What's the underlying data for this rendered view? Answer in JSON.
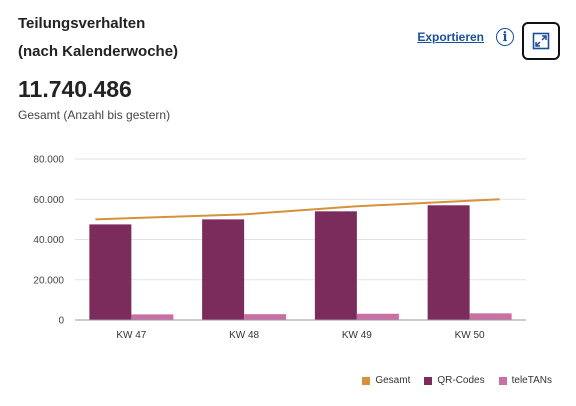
{
  "header": {
    "title_line1": "Teilungsverhalten",
    "title_line2": "(nach Kalenderwoche)",
    "export_label": "Exportieren",
    "info_icon": "info-icon",
    "expand_icon": "expand-icon"
  },
  "summary": {
    "total": "11.740.486",
    "caption": "Gesamt (Anzahl bis gestern)"
  },
  "colors": {
    "gesamt": "#d4923a",
    "qr": "#7b2c5c",
    "teletan": "#c86fa5",
    "accent": "#1a4f9c"
  },
  "chart_data": {
    "type": "bar",
    "categories": [
      "KW 47",
      "KW 48",
      "KW 49",
      "KW 50"
    ],
    "series": [
      {
        "name": "Gesamt",
        "type": "line",
        "values": [
          50000,
          52500,
          56500,
          60000
        ]
      },
      {
        "name": "QR-Codes",
        "type": "bar",
        "values": [
          47500,
          50000,
          54000,
          57000
        ]
      },
      {
        "name": "teleTANs",
        "type": "bar",
        "values": [
          2800,
          2900,
          3100,
          3300
        ]
      }
    ],
    "title": "Teilungsverhalten (nach Kalenderwoche)",
    "xlabel": "",
    "ylabel": "",
    "ylim": [
      0,
      80000
    ],
    "yticks": [
      0,
      20000,
      40000,
      60000,
      80000
    ],
    "ytick_labels": [
      "0",
      "20.000",
      "40.000",
      "60.000",
      "80.000"
    ],
    "grid": true,
    "legend_position": "bottom-right"
  }
}
